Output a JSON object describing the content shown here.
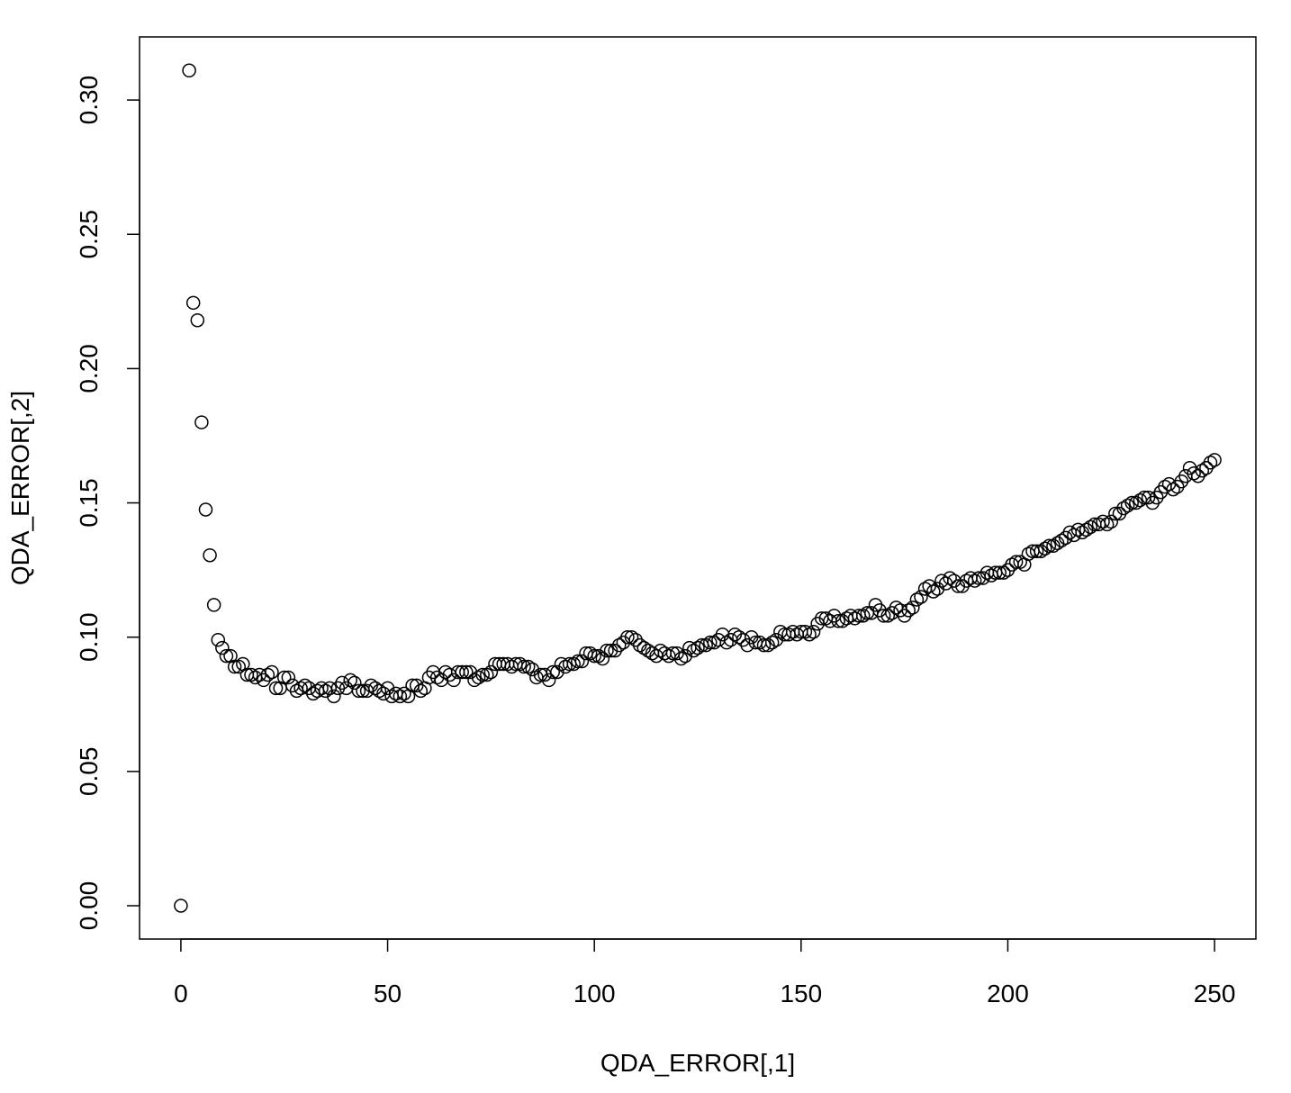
{
  "chart_data": {
    "type": "scatter",
    "x_label": "QDA_ERROR[,1]",
    "y_label": "QDA_ERROR[,2]",
    "xlim": [
      -10,
      260
    ],
    "ylim": [
      -0.0124,
      0.3235
    ],
    "xticks": [
      0,
      50,
      100,
      150,
      200,
      250
    ],
    "yticks": [
      {
        "value": 0,
        "label": "0.00"
      },
      {
        "value": 0.05,
        "label": "0.05"
      },
      {
        "value": 0.1,
        "label": "0.10"
      },
      {
        "value": 0.15,
        "label": "0.15"
      },
      {
        "value": 0.2,
        "label": "0.20"
      },
      {
        "value": 0.25,
        "label": "0.25"
      },
      {
        "value": 0.3,
        "label": "0.30"
      }
    ],
    "color": "#000000",
    "x": [
      0,
      2,
      3,
      4,
      5,
      6,
      7,
      8,
      9,
      10,
      11,
      12,
      13,
      14,
      15,
      16,
      17,
      18,
      19,
      20,
      21,
      22,
      23,
      24,
      25,
      26,
      27,
      28,
      29,
      30,
      31,
      32,
      33,
      34,
      35,
      36,
      37,
      38,
      39,
      40,
      41,
      42,
      43,
      44,
      45,
      46,
      47,
      48,
      49,
      50,
      51,
      52,
      53,
      54,
      55,
      56,
      57,
      58,
      59,
      60,
      61,
      62,
      63,
      64,
      65,
      66,
      67,
      68,
      69,
      70,
      71,
      72,
      73,
      74,
      75,
      76,
      77,
      78,
      79,
      80,
      81,
      82,
      83,
      84,
      85,
      86,
      87,
      88,
      89,
      90,
      91,
      92,
      93,
      94,
      95,
      96,
      97,
      98,
      99,
      100,
      101,
      102,
      103,
      104,
      105,
      106,
      107,
      108,
      109,
      110,
      111,
      112,
      113,
      114,
      115,
      116,
      117,
      118,
      119,
      120,
      121,
      122,
      123,
      124,
      125,
      126,
      127,
      128,
      129,
      130,
      131,
      132,
      133,
      134,
      135,
      136,
      137,
      138,
      139,
      140,
      141,
      142,
      143,
      144,
      145,
      146,
      147,
      148,
      149,
      150,
      151,
      152,
      153,
      154,
      155,
      156,
      157,
      158,
      159,
      160,
      161,
      162,
      163,
      164,
      165,
      166,
      167,
      168,
      169,
      170,
      171,
      172,
      173,
      174,
      175,
      176,
      177,
      178,
      179,
      180,
      181,
      182,
      183,
      184,
      185,
      186,
      187,
      188,
      189,
      190,
      191,
      192,
      193,
      194,
      195,
      196,
      197,
      198,
      199,
      200,
      201,
      202,
      203,
      204,
      205,
      206,
      207,
      208,
      209,
      210,
      211,
      212,
      213,
      214,
      215,
      216,
      217,
      218,
      219,
      220,
      221,
      222,
      223,
      224,
      225,
      226,
      227,
      228,
      229,
      230,
      231,
      232,
      233,
      234,
      235,
      236,
      237,
      238,
      239,
      240,
      241,
      242,
      243,
      244,
      245,
      246,
      247,
      248,
      249,
      250
    ],
    "values": [
      0,
      0.311,
      0.2245,
      0.218,
      0.18,
      0.1475,
      0.1305,
      0.112,
      0.099,
      0.096,
      0.093,
      0.093,
      0.089,
      0.089,
      0.09,
      0.086,
      0.086,
      0.085,
      0.086,
      0.084,
      0.086,
      0.087,
      0.081,
      0.081,
      0.085,
      0.085,
      0.082,
      0.08,
      0.081,
      0.082,
      0.081,
      0.079,
      0.08,
      0.081,
      0.08,
      0.081,
      0.078,
      0.081,
      0.083,
      0.081,
      0.084,
      0.083,
      0.08,
      0.08,
      0.08,
      0.082,
      0.081,
      0.08,
      0.079,
      0.081,
      0.078,
      0.079,
      0.078,
      0.079,
      0.078,
      0.082,
      0.082,
      0.08,
      0.081,
      0.085,
      0.087,
      0.085,
      0.084,
      0.087,
      0.086,
      0.084,
      0.087,
      0.087,
      0.087,
      0.087,
      0.084,
      0.085,
      0.086,
      0.086,
      0.087,
      0.09,
      0.09,
      0.09,
      0.09,
      0.089,
      0.09,
      0.09,
      0.089,
      0.089,
      0.088,
      0.085,
      0.086,
      0.086,
      0.084,
      0.087,
      0.087,
      0.09,
      0.089,
      0.09,
      0.09,
      0.091,
      0.091,
      0.094,
      0.094,
      0.093,
      0.093,
      0.092,
      0.095,
      0.095,
      0.095,
      0.097,
      0.098,
      0.1,
      0.1,
      0.099,
      0.097,
      0.096,
      0.095,
      0.094,
      0.093,
      0.095,
      0.094,
      0.093,
      0.094,
      0.094,
      0.092,
      0.093,
      0.096,
      0.095,
      0.096,
      0.097,
      0.097,
      0.098,
      0.098,
      0.099,
      0.101,
      0.098,
      0.099,
      0.101,
      0.1,
      0.099,
      0.097,
      0.1,
      0.098,
      0.098,
      0.097,
      0.097,
      0.098,
      0.099,
      0.102,
      0.101,
      0.101,
      0.102,
      0.101,
      0.102,
      0.102,
      0.101,
      0.102,
      0.105,
      0.107,
      0.107,
      0.106,
      0.108,
      0.106,
      0.106,
      0.107,
      0.108,
      0.107,
      0.108,
      0.108,
      0.109,
      0.109,
      0.112,
      0.11,
      0.108,
      0.108,
      0.109,
      0.111,
      0.11,
      0.108,
      0.11,
      0.111,
      0.114,
      0.115,
      0.118,
      0.119,
      0.117,
      0.118,
      0.121,
      0.12,
      0.122,
      0.121,
      0.119,
      0.119,
      0.121,
      0.122,
      0.121,
      0.122,
      0.122,
      0.124,
      0.123,
      0.124,
      0.124,
      0.124,
      0.125,
      0.127,
      0.128,
      0.128,
      0.127,
      0.131,
      0.132,
      0.132,
      0.132,
      0.133,
      0.134,
      0.134,
      0.135,
      0.136,
      0.137,
      0.139,
      0.138,
      0.14,
      0.139,
      0.14,
      0.141,
      0.142,
      0.142,
      0.143,
      0.142,
      0.143,
      0.146,
      0.146,
      0.148,
      0.149,
      0.15,
      0.15,
      0.151,
      0.152,
      0.152,
      0.15,
      0.152,
      0.154,
      0.156,
      0.157,
      0.155,
      0.156,
      0.158,
      0.16,
      0.163,
      0.161,
      0.16,
      0.162,
      0.163,
      0.165,
      0.166
    ]
  }
}
